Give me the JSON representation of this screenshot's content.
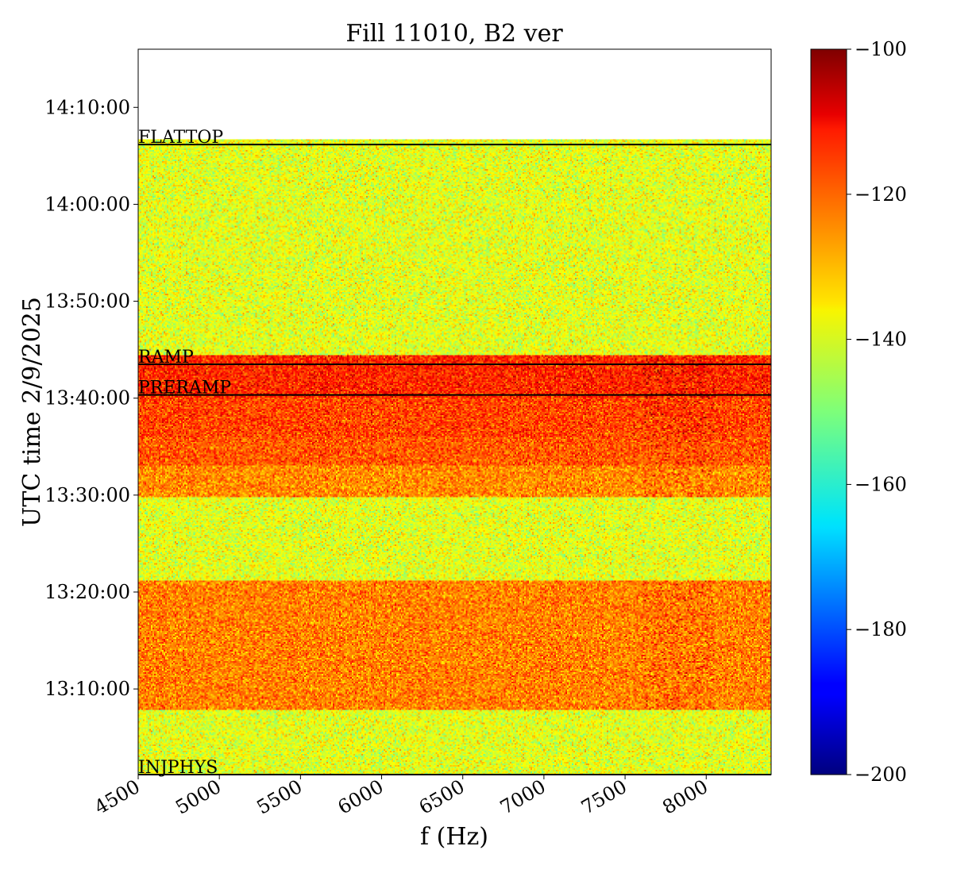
{
  "chart_data": {
    "type": "heatmap",
    "title": "Fill 11010, B2 ver",
    "xlabel": "f (Hz)",
    "ylabel": "UTC time 2/9/2025",
    "xlim": [
      4500,
      8400
    ],
    "x_ticks": [
      4500,
      5000,
      5500,
      6000,
      6500,
      7000,
      7500,
      8000
    ],
    "x_tick_labels": [
      "4500",
      "5000",
      "5500",
      "6000",
      "6500",
      "7000",
      "7500",
      "8000"
    ],
    "y_range": [
      "13:01:10",
      "14:16:00"
    ],
    "y_ticks": [
      "13:10:00",
      "13:20:00",
      "13:30:00",
      "13:40:00",
      "13:50:00",
      "14:00:00",
      "14:10:00"
    ],
    "data_time_range": [
      "13:01:10",
      "14:06:40"
    ],
    "bands": [
      {
        "start": "13:01:10",
        "end": "13:07:50",
        "mean_level": -140
      },
      {
        "start": "13:07:50",
        "end": "13:21:10",
        "mean_level": -125
      },
      {
        "start": "13:21:10",
        "end": "13:29:50",
        "mean_level": -140
      },
      {
        "start": "13:29:50",
        "end": "13:33:00",
        "mean_level": -126
      },
      {
        "start": "13:33:00",
        "end": "13:36:00",
        "mean_level": -121
      },
      {
        "start": "13:36:00",
        "end": "13:40:00",
        "mean_level": -119
      },
      {
        "start": "13:40:00",
        "end": "13:44:30",
        "mean_level": -116
      },
      {
        "start": "13:44:30",
        "end": "14:06:40",
        "mean_level": -140
      }
    ],
    "hot_region_x": [
      7600,
      8050
    ],
    "markers": [
      {
        "label": "FLATTOP",
        "time": "14:06:10"
      },
      {
        "label": "RAMP",
        "time": "13:43:30"
      },
      {
        "label": "PRERAMP",
        "time": "13:40:20"
      },
      {
        "label": "INJPHYS",
        "time": "13:01:10"
      }
    ],
    "colorbar": {
      "colormap": "jet",
      "range": [
        -200,
        -100
      ],
      "ticks": [
        -100,
        -120,
        -140,
        -160,
        -180,
        -200
      ],
      "tick_labels": [
        "−100",
        "−120",
        "−140",
        "−160",
        "−180",
        "−200"
      ]
    }
  }
}
